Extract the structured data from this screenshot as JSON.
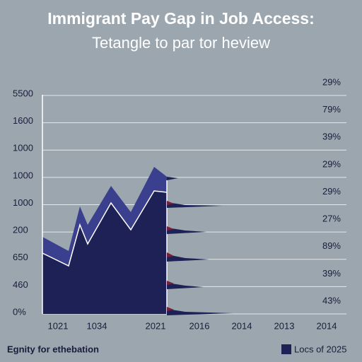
{
  "chart_data": {
    "type": "area",
    "title": "Immigrant Pay Gap in Job Access:",
    "subtitle": "Tetangle to par tor heview",
    "categories": [
      "1021",
      "1034",
      "2021",
      "2016",
      "2014",
      "2013",
      "2014"
    ],
    "y_labels": [
      "5500",
      "1600",
      "1000",
      "1000",
      "1000",
      "200",
      "650",
      "460",
      "0%"
    ],
    "y2_labels": [
      "29%",
      "79%",
      "39%",
      "29%",
      "29%",
      "27%",
      "89%",
      "39%",
      "43%"
    ],
    "footer": "Egnity for ethebation",
    "series": [
      {
        "name": "Locs of 2025",
        "color": "#1e2156"
      }
    ]
  }
}
